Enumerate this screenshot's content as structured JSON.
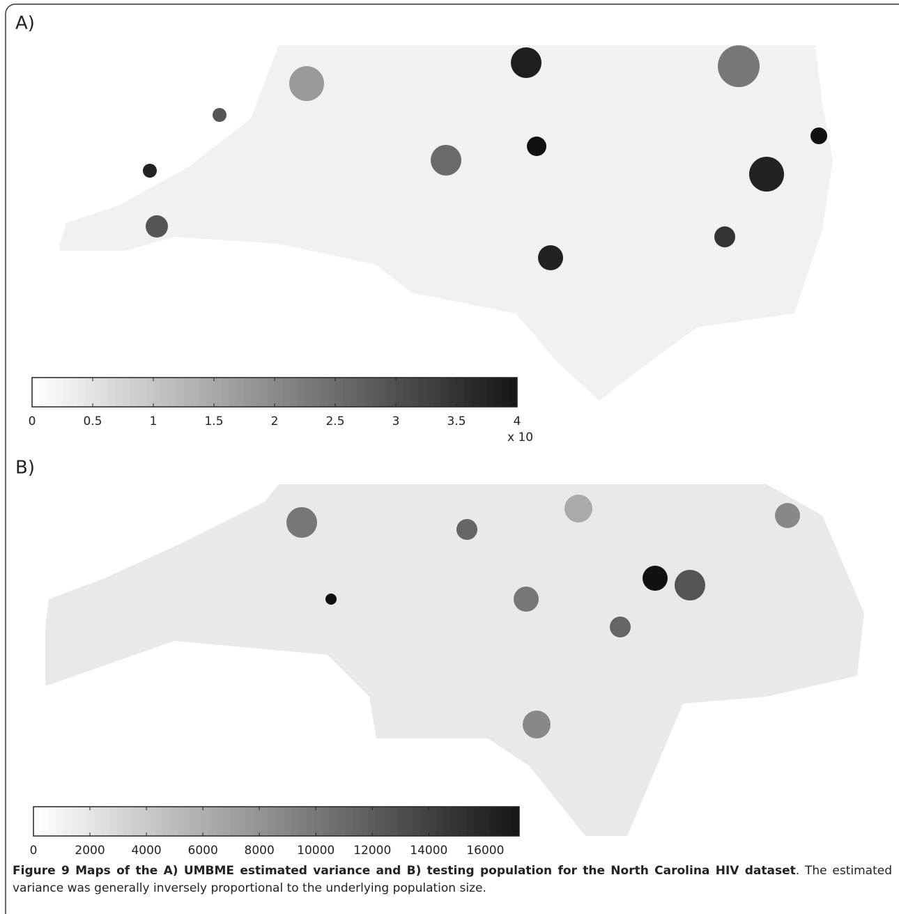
{
  "panels": [
    {
      "label": "A)",
      "colorbar": {
        "lim": [
          0,
          4
        ],
        "ticks": [
          0,
          0.5,
          1,
          1.5,
          2,
          2.5,
          3,
          3.5,
          4
        ],
        "exponent_label": "x 10"
      }
    },
    {
      "label": "B)",
      "colorbar": {
        "lim": [
          0,
          17200
        ],
        "ticks": [
          0,
          2000,
          4000,
          6000,
          8000,
          10000,
          12000,
          14000,
          16000
        ]
      }
    }
  ],
  "caption": {
    "title": "Figure 9 Maps of the A) UMBME estimated variance and B) testing population for the North Carolina HIV dataset",
    "text": ". The estimated variance was generally inversely proportional to the underlying population size."
  }
}
